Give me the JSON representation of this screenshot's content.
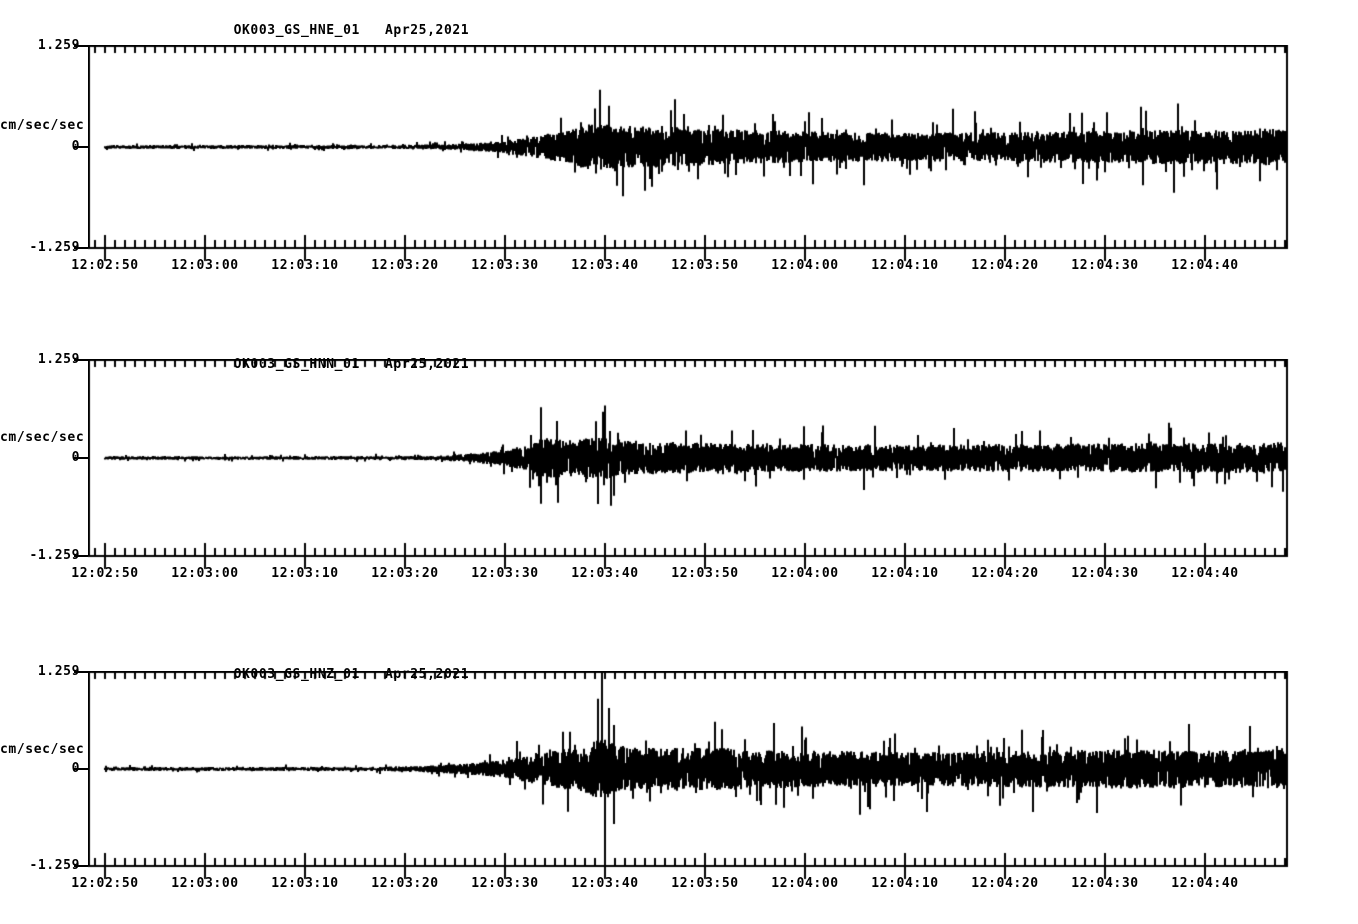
{
  "background": "#ffffff",
  "ink": "#000000",
  "axis": {
    "y_max_label": "1.259",
    "y_units_label": "cm/sec/sec",
    "y_zero_label": "0",
    "y_min_label": "-1.259",
    "ylim": [
      -1.259,
      1.259
    ],
    "x_tick_labels": [
      "12:02:50",
      "12:03:00",
      "12:03:10",
      "12:03:20",
      "12:03:30",
      "12:03:40",
      "12:03:50",
      "12:04:00",
      "12:04:10",
      "12:04:20",
      "12:04:30",
      "12:04:40"
    ],
    "x_major_tick_seconds": 10,
    "x_minor_tick_seconds": 1,
    "x_span_seconds": 120
  },
  "chart_data": [
    {
      "type": "line",
      "title": "OK003_GS_HNE_01",
      "date_label": "Apr25,2021",
      "channel": "HNE",
      "ylabel": "cm/sec/sec",
      "ylim": [
        -1.259,
        1.259
      ],
      "x_start": "12:02:50",
      "x_end": "12:04:48",
      "seed": 101,
      "envelope_t_seconds": [
        0,
        30,
        36,
        40,
        43,
        46,
        49,
        52,
        56,
        60,
        66,
        72,
        82,
        92,
        100,
        106,
        112,
        118.3
      ],
      "envelope_amplitude": [
        0.022,
        0.024,
        0.04,
        0.08,
        0.14,
        0.2,
        0.3,
        0.26,
        0.27,
        0.23,
        0.21,
        0.19,
        0.18,
        0.19,
        0.2,
        0.22,
        0.21,
        0.24
      ],
      "events": [
        {
          "t": 49.5,
          "amp": 0.72
        },
        {
          "t": 51.8,
          "amp": -0.62
        },
        {
          "t": 57.0,
          "amp": 0.6
        },
        {
          "t": 54.0,
          "amp": -0.55
        }
      ]
    },
    {
      "type": "line",
      "title": "OK003_GS_HNN_01",
      "date_label": "Apr25,2021",
      "channel": "HNN",
      "ylabel": "cm/sec/sec",
      "ylim": [
        -1.259,
        1.259
      ],
      "x_start": "12:02:50",
      "x_end": "12:04:48",
      "seed": 202,
      "envelope_t_seconds": [
        0,
        28,
        33,
        36,
        40,
        42,
        44,
        47,
        50,
        52,
        56,
        62,
        70,
        80,
        92,
        104,
        112,
        118.3
      ],
      "envelope_amplitude": [
        0.02,
        0.022,
        0.03,
        0.05,
        0.1,
        0.16,
        0.26,
        0.24,
        0.28,
        0.23,
        0.21,
        0.19,
        0.18,
        0.17,
        0.18,
        0.19,
        0.19,
        0.2
      ],
      "events": [
        {
          "t": 43.6,
          "amp": 0.66
        },
        {
          "t": 49.8,
          "amp": 0.6
        },
        {
          "t": 50.6,
          "amp": -0.62
        },
        {
          "t": 45.3,
          "amp": -0.58
        }
      ]
    },
    {
      "type": "line",
      "title": "OK003_GS_HNZ_01",
      "date_label": "Apr25,2021",
      "channel": "HNZ",
      "ylabel": "cm/sec/sec",
      "ylim": [
        -1.259,
        1.259
      ],
      "x_start": "12:02:50",
      "x_end": "12:04:48",
      "seed": 303,
      "envelope_t_seconds": [
        0,
        26,
        32,
        38,
        41,
        43,
        46,
        48,
        50,
        51,
        54,
        58,
        64,
        72,
        82,
        92,
        102,
        112,
        118.3
      ],
      "envelope_amplitude": [
        0.022,
        0.024,
        0.04,
        0.09,
        0.14,
        0.2,
        0.27,
        0.3,
        0.42,
        0.32,
        0.27,
        0.29,
        0.26,
        0.24,
        0.22,
        0.24,
        0.26,
        0.24,
        0.27
      ],
      "events": [
        {
          "t": 49.7,
          "amp": 1.259
        },
        {
          "t": 50.0,
          "amp": -1.15
        },
        {
          "t": 49.3,
          "amp": 0.92
        },
        {
          "t": 50.4,
          "amp": 0.8
        },
        {
          "t": 50.9,
          "amp": -0.72
        },
        {
          "t": 61.0,
          "amp": 0.62
        },
        {
          "t": 75.5,
          "amp": -0.6
        }
      ]
    }
  ]
}
